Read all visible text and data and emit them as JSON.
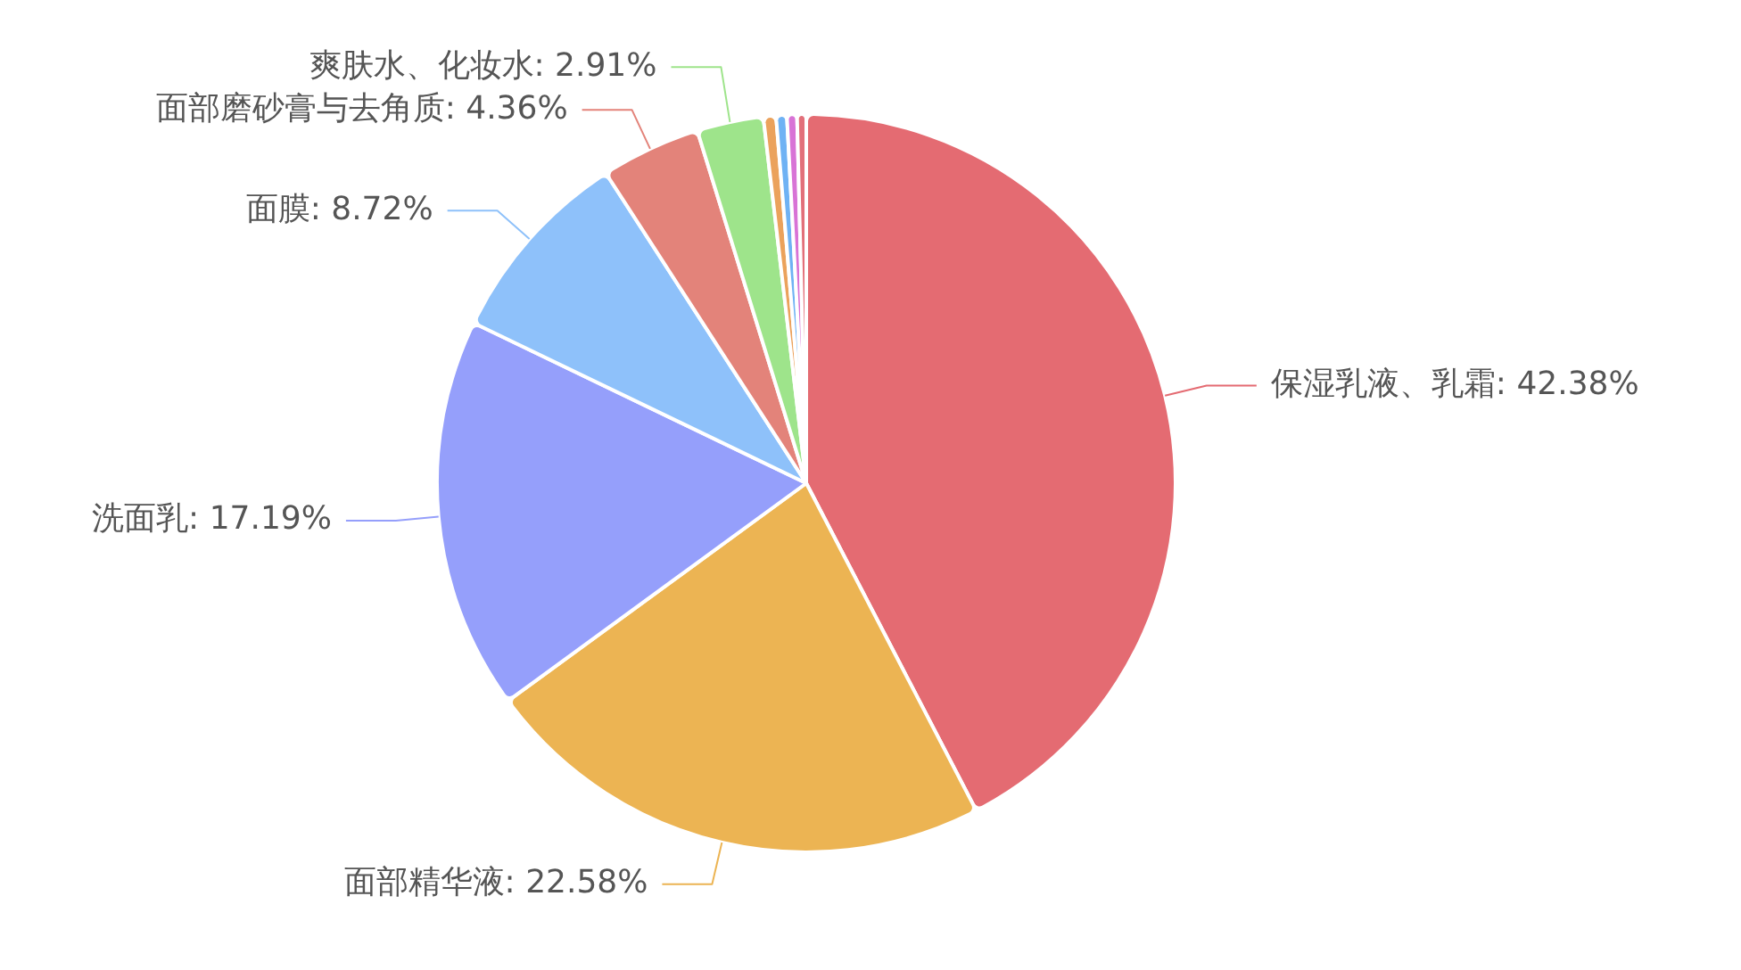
{
  "chart_data": {
    "type": "pie",
    "categories": [
      "保湿乳液、乳霜",
      "面部精华液",
      "洗面乳",
      "面膜",
      "面部磨砂膏与去角质",
      "爽肤水、化妆水",
      null,
      null,
      null,
      null
    ],
    "values": [
      42.38,
      22.58,
      17.19,
      8.72,
      4.36,
      2.91,
      0.55,
      0.47,
      0.44,
      0.4
    ],
    "colors": [
      "#e46b72",
      "#ecb453",
      "#959ffb",
      "#8ec1fa",
      "#e3837a",
      "#9ee48b",
      "#eba25c",
      "#6fb2f4",
      "#d873d6",
      "#e2707a"
    ],
    "value_labels": [
      "42.38%",
      "22.58%",
      "17.19%",
      "8.72%",
      "4.36%",
      "2.91%",
      null,
      null,
      null,
      null
    ]
  }
}
